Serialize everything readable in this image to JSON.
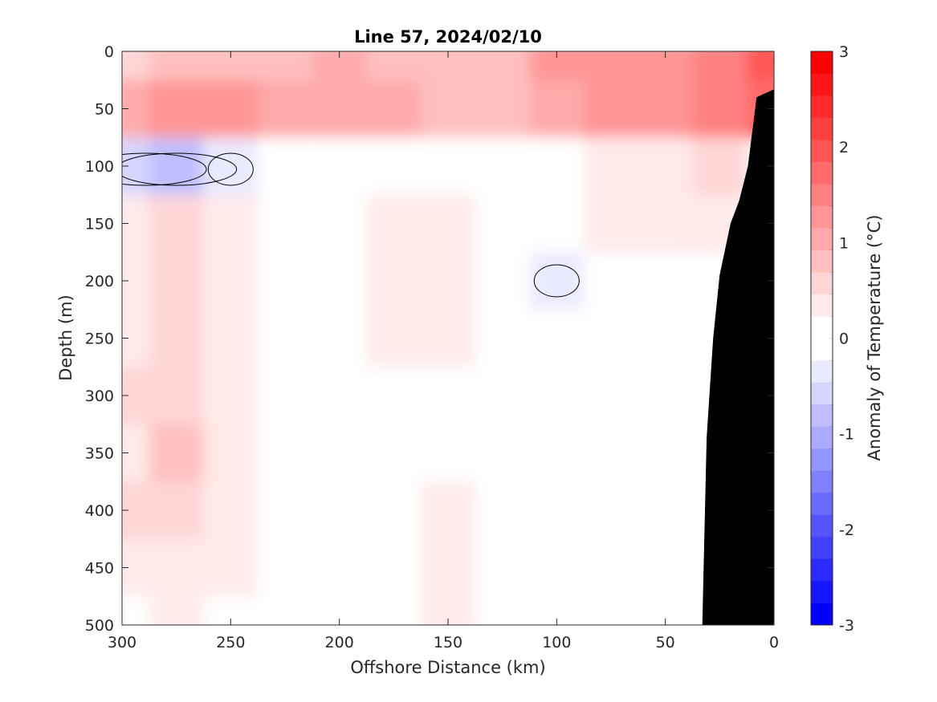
{
  "chart_data": {
    "type": "heatmap",
    "title": "Line 57, 2024/02/10",
    "xlabel": "Offshore Distance (km)",
    "ylabel": "Depth (m)",
    "colorbar_label": "Anomaly of Temperature (°C)",
    "xlim": [
      300,
      0
    ],
    "x_reversed": true,
    "ylim": [
      500,
      0
    ],
    "y_reversed": true,
    "x_ticks": [
      "300",
      "250",
      "200",
      "150",
      "100",
      "50",
      "0"
    ],
    "y_ticks": [
      "0",
      "50",
      "100",
      "150",
      "200",
      "250",
      "300",
      "350",
      "400",
      "450",
      "500"
    ],
    "colorbar_ticks": [
      "3",
      "2",
      "1",
      "0",
      "-1",
      "-2",
      "-3"
    ],
    "colorbar_range": [
      -3,
      3
    ],
    "colorbar_step": 0.25,
    "colorbar_colors": [
      "#0000ff",
      "#1515ff",
      "#2b2bff",
      "#4040ff",
      "#5555ff",
      "#6a6aff",
      "#8080ff",
      "#9595ff",
      "#aaaaff",
      "#bfbfff",
      "#d5d5ff",
      "#eaeaff",
      "#ffffff",
      "#ffffff",
      "#ffeaea",
      "#ffd5d5",
      "#ffbfbf",
      "#ffaaaa",
      "#ff9595",
      "#ff8080",
      "#ff6a6a",
      "#ff5555",
      "#ff4040",
      "#ff2b2b",
      "#ff1515",
      "#ff0000"
    ],
    "zero_contour_color": "#000000",
    "bathymetry_color": "#000000",
    "depth_levels": [
      0,
      50,
      100,
      150,
      200,
      250,
      300,
      350,
      400,
      450,
      500
    ],
    "distance_columns": [
      300,
      275,
      250,
      225,
      200,
      175,
      150,
      125,
      100,
      75,
      50,
      25,
      0
    ],
    "anomaly_grid": [
      [
        0.9,
        1.1,
        1.0,
        1.1,
        1.3,
        1.1,
        1.1,
        1.2,
        1.7,
        1.7,
        1.6,
        1.9,
        2.4
      ],
      [
        1.3,
        1.5,
        1.5,
        1.4,
        1.4,
        1.3,
        1.1,
        1.2,
        1.4,
        1.5,
        1.6,
        1.9,
        2.0
      ],
      [
        -0.3,
        -0.6,
        -0.1,
        0.3,
        0.0,
        0.2,
        0.3,
        0.2,
        0.4,
        0.7,
        0.7,
        0.9,
        null
      ],
      [
        0.5,
        0.8,
        0.6,
        0.4,
        0.2,
        0.5,
        0.5,
        0.4,
        0.3,
        0.5,
        0.6,
        0.7,
        null
      ],
      [
        0.5,
        0.9,
        0.6,
        0.2,
        0.2,
        0.6,
        0.6,
        0.2,
        -0.1,
        0.2,
        0.4,
        null,
        null
      ],
      [
        0.5,
        0.8,
        0.6,
        0.3,
        0.1,
        0.5,
        0.5,
        0.1,
        0.1,
        0.2,
        0.3,
        null,
        null
      ],
      [
        0.8,
        0.9,
        0.6,
        0.4,
        0.1,
        0.4,
        0.4,
        0.3,
        0.1,
        0.3,
        0.3,
        null,
        null
      ],
      [
        0.7,
        1.0,
        0.6,
        0.4,
        0.3,
        0.4,
        0.4,
        0.4,
        0.3,
        0.1,
        0.3,
        0.2,
        null
      ],
      [
        0.9,
        0.8,
        0.6,
        0.4,
        0.1,
        0.3,
        0.5,
        0.4,
        0.3,
        0.2,
        0.2,
        0.2,
        null
      ],
      [
        0.6,
        0.7,
        0.5,
        0.3,
        0.1,
        0.4,
        0.5,
        0.3,
        0.1,
        0.1,
        0.1,
        0.1,
        null
      ],
      [
        0.4,
        0.5,
        0.4,
        0.1,
        0.2,
        0.4,
        0.5,
        0.3,
        0.3,
        0.1,
        0.1,
        0.0,
        null
      ]
    ],
    "bathymetry": [
      [
        0,
        33
      ],
      [
        8,
        40
      ],
      [
        12,
        100
      ],
      [
        16,
        130
      ],
      [
        20,
        150
      ],
      [
        25,
        195
      ],
      [
        28,
        250
      ],
      [
        31,
        337
      ],
      [
        33,
        500
      ]
    ]
  }
}
